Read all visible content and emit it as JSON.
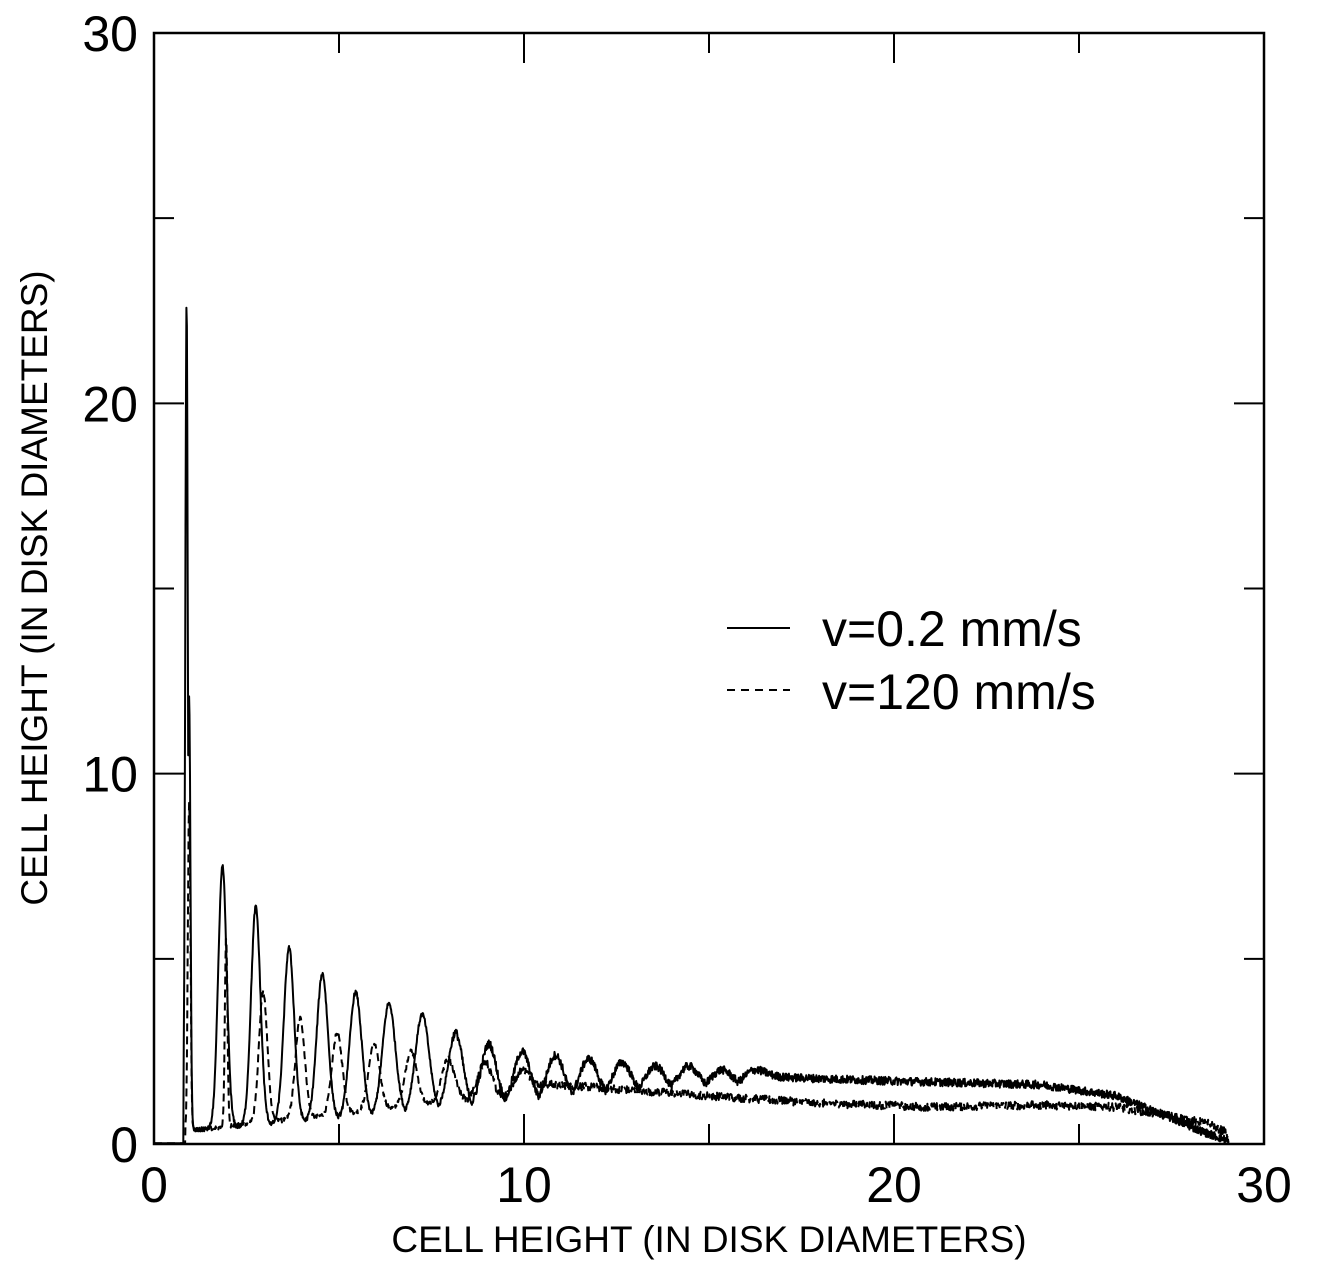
{
  "chart_data": {
    "type": "line",
    "xlabel": "CELL HEIGHT (IN DISK DIAMETERS)",
    "ylabel": "CELL HEIGHT (IN DISK DIAMETERS)",
    "xlim": [
      0,
      30
    ],
    "ylim": [
      0,
      30
    ],
    "x_ticks": [
      "0",
      "10",
      "20",
      "30"
    ],
    "y_ticks": [
      "0",
      "10",
      "20",
      "30"
    ],
    "grid": false,
    "legend_position": "right",
    "series": [
      {
        "name": "v=0.2 mm/s",
        "style": "solid",
        "color": "#000000",
        "peaks": [
          {
            "x": 0.88,
            "y": 22.7
          },
          {
            "x": 0.95,
            "y": 12.1
          },
          {
            "x": 1.85,
            "y": 7.5
          },
          {
            "x": 2.75,
            "y": 6.4
          },
          {
            "x": 3.65,
            "y": 5.3
          },
          {
            "x": 4.55,
            "y": 4.6
          },
          {
            "x": 5.45,
            "y": 4.1
          },
          {
            "x": 6.35,
            "y": 3.8
          },
          {
            "x": 7.25,
            "y": 3.5
          },
          {
            "x": 8.15,
            "y": 3.0
          },
          {
            "x": 9.05,
            "y": 2.7
          },
          {
            "x": 9.95,
            "y": 2.5
          },
          {
            "x": 10.85,
            "y": 2.4
          },
          {
            "x": 11.75,
            "y": 2.3
          },
          {
            "x": 12.65,
            "y": 2.2
          },
          {
            "x": 13.55,
            "y": 2.1
          },
          {
            "x": 14.45,
            "y": 2.1
          },
          {
            "x": 15.35,
            "y": 2.0
          },
          {
            "x": 16.25,
            "y": 2.0
          }
        ],
        "plateau": [
          {
            "x": 17,
            "y": 1.8
          },
          {
            "x": 20,
            "y": 1.7
          },
          {
            "x": 24,
            "y": 1.6
          },
          {
            "x": 26,
            "y": 1.3
          },
          {
            "x": 27.5,
            "y": 0.7
          },
          {
            "x": 28.3,
            "y": 0.35
          },
          {
            "x": 29,
            "y": 0.1
          }
        ],
        "start_x": 0.8,
        "end_x": 29.0
      },
      {
        "name": "v=120 mm/s",
        "style": "dashed",
        "color": "#000000",
        "peaks": [
          {
            "x": 0.95,
            "y": 9.2
          },
          {
            "x": 1.95,
            "y": 5.6
          },
          {
            "x": 2.95,
            "y": 4.1
          },
          {
            "x": 3.95,
            "y": 3.4
          },
          {
            "x": 4.95,
            "y": 3.0
          },
          {
            "x": 5.95,
            "y": 2.7
          },
          {
            "x": 6.95,
            "y": 2.5
          },
          {
            "x": 7.95,
            "y": 2.3
          },
          {
            "x": 8.95,
            "y": 2.2
          },
          {
            "x": 9.95,
            "y": 2.0
          }
        ],
        "plateau": [
          {
            "x": 11,
            "y": 1.6
          },
          {
            "x": 15,
            "y": 1.3
          },
          {
            "x": 18,
            "y": 1.1
          },
          {
            "x": 21,
            "y": 1.0
          },
          {
            "x": 24,
            "y": 1.05
          },
          {
            "x": 26,
            "y": 1.0
          },
          {
            "x": 27.5,
            "y": 0.75
          },
          {
            "x": 28.5,
            "y": 0.55
          },
          {
            "x": 29,
            "y": 0.3
          }
        ],
        "start_x": 0.85,
        "end_x": 29.0
      }
    ]
  }
}
